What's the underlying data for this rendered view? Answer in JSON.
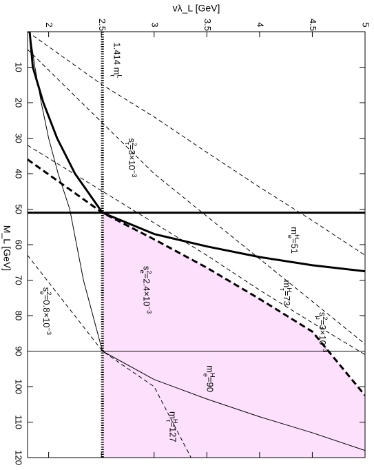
{
  "chart_data": {
    "type": "line",
    "xlabel": "vλ_L [GeV]",
    "ylabel": "M_L [GeV]",
    "xlim": [
      1.8,
      5
    ],
    "ylim": [
      0,
      120
    ],
    "x_ticks": [
      {
        "value": 2,
        "label": "2"
      },
      {
        "value": 2.5,
        "label": "2.5"
      },
      {
        "value": 3,
        "label": "3"
      },
      {
        "value": 3.5,
        "label": "3.5"
      },
      {
        "value": 4,
        "label": "4"
      },
      {
        "value": 4.5,
        "label": "4.5"
      },
      {
        "value": 5,
        "label": "5"
      }
    ],
    "y_ticks": [
      {
        "value": 10,
        "label": "10"
      },
      {
        "value": 20,
        "label": "20"
      },
      {
        "value": 30,
        "label": "30"
      },
      {
        "value": 40,
        "label": "40"
      },
      {
        "value": 50,
        "label": "50"
      },
      {
        "value": 60,
        "label": "60"
      },
      {
        "value": 70,
        "label": "70"
      },
      {
        "value": 80,
        "label": "80"
      },
      {
        "value": 90,
        "label": "90"
      },
      {
        "value": 100,
        "label": "100"
      },
      {
        "value": 110,
        "label": "110"
      },
      {
        "value": 120,
        "label": "120"
      }
    ],
    "region": {
      "color": "#fce0fc",
      "points": [
        [
          2.51,
          51
        ],
        [
          3.0,
          58.5
        ],
        [
          3.5,
          66.5
        ],
        [
          4.0,
          75.3
        ],
        [
          4.5,
          84.5
        ],
        [
          5.0,
          102.5
        ],
        [
          5.0,
          120
        ],
        [
          2.51,
          120
        ]
      ]
    },
    "series": [
      {
        "style": "thick-solid",
        "points": [
          [
            1.82,
            0
          ],
          [
            1.85,
            10
          ],
          [
            1.95,
            20
          ],
          [
            2.08,
            30
          ],
          [
            2.25,
            40
          ],
          [
            2.51,
            51
          ],
          [
            3.0,
            57
          ],
          [
            3.5,
            60.5
          ],
          [
            4.0,
            63.5
          ],
          [
            4.5,
            65.8
          ],
          [
            5.0,
            67.5
          ]
        ]
      },
      {
        "style": "thick-dashed",
        "points": [
          [
            1.8,
            36
          ],
          [
            2.51,
            51
          ],
          [
            3.0,
            58.5
          ],
          [
            3.5,
            66.5
          ],
          [
            4.0,
            75.3
          ],
          [
            4.5,
            84.5
          ],
          [
            5.0,
            102.5
          ]
        ]
      },
      {
        "style": "thin-solid",
        "points": [
          [
            1.82,
            0
          ],
          [
            1.87,
            10
          ],
          [
            1.93,
            20
          ],
          [
            2.0,
            30
          ],
          [
            2.09,
            40
          ],
          [
            2.2,
            50
          ],
          [
            2.33,
            70
          ],
          [
            2.51,
            90
          ],
          [
            3.0,
            98
          ],
          [
            3.5,
            103.5
          ],
          [
            4.0,
            108.5
          ],
          [
            4.5,
            113
          ],
          [
            5.0,
            118
          ]
        ]
      },
      {
        "style": "thin-dashed",
        "points": [
          [
            1.8,
            63
          ],
          [
            2.51,
            90
          ],
          [
            3.0,
            100
          ],
          [
            3.35,
            120
          ]
        ]
      },
      {
        "style": "thin-dashed",
        "points": [
          [
            1.8,
            32
          ],
          [
            3.5,
            63
          ],
          [
            4.0,
            72.8
          ],
          [
            4.5,
            82
          ],
          [
            5.0,
            91
          ]
        ]
      },
      {
        "style": "thin-dashed",
        "points": [
          [
            1.8,
            5
          ],
          [
            3.0,
            40
          ],
          [
            4.0,
            64
          ],
          [
            5.0,
            88
          ]
        ]
      },
      {
        "style": "thin-dashed",
        "points": [
          [
            1.8,
            0
          ],
          [
            2.51,
            15
          ],
          [
            3.0,
            24
          ],
          [
            3.5,
            34
          ],
          [
            4.0,
            43.8
          ],
          [
            4.5,
            53.2
          ],
          [
            5.0,
            63
          ]
        ]
      },
      {
        "style": "thick-dotted",
        "points": [
          [
            2.51,
            0
          ],
          [
            2.51,
            120
          ]
        ]
      },
      {
        "style": "thick-solid",
        "points": [
          [
            1.8,
            51
          ],
          [
            5.0,
            51
          ]
        ]
      },
      {
        "style": "thin-solid",
        "points": [
          [
            1.8,
            90
          ],
          [
            5.0,
            90
          ]
        ]
      }
    ],
    "annotations": [
      {
        "text": "1.414 m",
        "sup": "L",
        "sub": "τ",
        "x": 2.62,
        "y": 3
      },
      {
        "text": "s",
        "sup": "2",
        "sub": "τ",
        "tail": "=3×10",
        "exp": "−3",
        "x": 2.76,
        "y": 30
      },
      {
        "text": "m",
        "sup": "H",
        "sub": "e",
        "tail": "=51",
        "x": 4.3,
        "y": 55
      },
      {
        "text": "m",
        "sup": "H",
        "sub": "τ",
        "tail": "=73",
        "x": 4.23,
        "y": 70
      },
      {
        "text": "s",
        "sup": "2",
        "sub": "μ",
        "tail": "=3×10",
        "exp": "−3",
        "x": 4.57,
        "y": 79
      },
      {
        "text": "s",
        "sup": "2",
        "sub": "e",
        "tail": "=2.4×10",
        "exp": "−3",
        "x": 2.9,
        "y": 66
      },
      {
        "text": "s",
        "sup": "2",
        "sub": "e",
        "tail": "=0.8×10",
        "exp": "−3",
        "x": 1.95,
        "y": 72
      },
      {
        "text": "m",
        "sup": "H",
        "sub": "e",
        "tail": "=90",
        "x": 3.5,
        "y": 94
      },
      {
        "text": "m",
        "sup": "H",
        "sub": "τ",
        "tail": "=127",
        "x": 3.15,
        "y": 107
      }
    ]
  }
}
